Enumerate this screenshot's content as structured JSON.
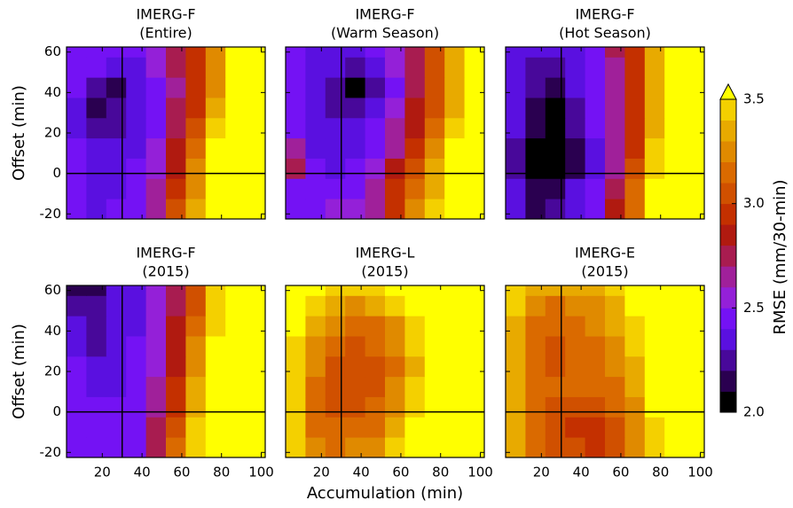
{
  "xlabel": "Accumulation (min)",
  "colorbar": {
    "label": "RMSE (mm/30-min)",
    "lim": [
      2.0,
      3.5
    ],
    "ticks": [
      {
        "value": 2,
        "label": "2.0"
      },
      2.5,
      {
        "value": 3,
        "label": "3.0"
      },
      3.5
    ],
    "colors": [
      "#000000",
      "#2a0050",
      "#48089a",
      "#5a10e0",
      "#7412f4",
      "#9420d8",
      "#a0209a",
      "#a81c50",
      "#b01a10",
      "#c43000",
      "#d05000",
      "#da6a00",
      "#e08a00",
      "#e8aa00",
      "#f4d000"
    ],
    "over": "#ffff00"
  },
  "chart_data": [
    {
      "type": "heatmap",
      "title": "IMERG-F",
      "subtitle": "(Entire)",
      "ylabel": "Offset (min)",
      "xlim": [
        2,
        102
      ],
      "ylim": [
        -22.5,
        62.5
      ],
      "xticks": [
        20,
        40,
        60,
        80,
        100
      ],
      "yticks": [
        -20,
        0,
        20,
        40,
        60
      ],
      "xticklabels": false,
      "yticklabels": true,
      "vline": 30,
      "hline": 0,
      "xbins": [
        2,
        12,
        22,
        32,
        42,
        52,
        62,
        72,
        82,
        92,
        102
      ],
      "ybins": [
        -22.5,
        -12.5,
        -2.5,
        7.5,
        17.5,
        27.5,
        37.5,
        47.5,
        57.5,
        62.5
      ],
      "values": [
        [
          2.4,
          2.35,
          2.4,
          2.45,
          2.6,
          3.0,
          3.3,
          3.6,
          3.6,
          3.6
        ],
        [
          2.4,
          2.35,
          2.35,
          2.4,
          2.6,
          2.9,
          3.2,
          3.6,
          3.6,
          3.6
        ],
        [
          2.4,
          2.35,
          2.3,
          2.4,
          2.55,
          2.85,
          3.2,
          3.6,
          3.6,
          3.6
        ],
        [
          2.4,
          2.3,
          2.3,
          2.35,
          2.5,
          2.8,
          3.1,
          3.5,
          3.6,
          3.6
        ],
        [
          2.35,
          2.25,
          2.25,
          2.3,
          2.45,
          2.75,
          3.05,
          3.45,
          3.6,
          3.6
        ],
        [
          2.35,
          2.15,
          2.2,
          2.3,
          2.45,
          2.7,
          2.95,
          3.3,
          3.6,
          3.6
        ],
        [
          2.4,
          2.25,
          2.15,
          2.3,
          2.45,
          2.65,
          2.9,
          3.2,
          3.6,
          3.6
        ],
        [
          2.45,
          2.4,
          2.35,
          2.35,
          2.5,
          2.7,
          2.95,
          3.2,
          3.6,
          3.6
        ],
        [
          2.4,
          2.45,
          2.4,
          2.4,
          2.5,
          2.7,
          2.95,
          3.25,
          3.6,
          3.6
        ]
      ]
    },
    {
      "type": "heatmap",
      "title": "IMERG-F",
      "subtitle": "(Warm Season)",
      "xlim": [
        2,
        102
      ],
      "ylim": [
        -22.5,
        62.5
      ],
      "xticks": [
        20,
        40,
        60,
        80,
        100
      ],
      "yticks": [
        -20,
        0,
        20,
        40,
        60
      ],
      "xticklabels": false,
      "yticklabels": false,
      "vline": 30,
      "hline": 0,
      "xbins": [
        2,
        12,
        22,
        32,
        42,
        52,
        62,
        72,
        82,
        92,
        102
      ],
      "ybins": [
        -22.5,
        -12.5,
        -2.5,
        7.5,
        17.5,
        27.5,
        37.5,
        47.5,
        57.5,
        62.5
      ],
      "values": [
        [
          2.45,
          2.45,
          2.5,
          2.5,
          2.6,
          2.9,
          3.2,
          3.4,
          3.6,
          3.6
        ],
        [
          2.45,
          2.4,
          2.45,
          2.45,
          2.6,
          2.9,
          3.1,
          3.3,
          3.6,
          3.6
        ],
        [
          2.7,
          2.4,
          2.35,
          2.4,
          2.5,
          2.8,
          3.0,
          3.3,
          3.6,
          3.6
        ],
        [
          2.6,
          2.35,
          2.3,
          2.35,
          2.45,
          2.65,
          2.9,
          3.2,
          3.5,
          3.6
        ],
        [
          2.45,
          2.35,
          2.3,
          2.35,
          2.4,
          2.6,
          2.85,
          3.15,
          3.4,
          3.6
        ],
        [
          2.4,
          2.3,
          2.25,
          2.25,
          2.35,
          2.55,
          2.8,
          3.05,
          3.35,
          3.6
        ],
        [
          2.45,
          2.3,
          2.2,
          2.05,
          2.2,
          2.45,
          2.75,
          3.0,
          3.3,
          3.6
        ],
        [
          2.4,
          2.35,
          2.3,
          2.25,
          2.3,
          2.5,
          2.7,
          3.0,
          3.3,
          3.6
        ],
        [
          2.4,
          2.3,
          2.35,
          2.35,
          2.4,
          2.5,
          2.75,
          3.0,
          3.3,
          3.6
        ]
      ]
    },
    {
      "type": "heatmap",
      "title": "IMERG-F",
      "subtitle": "(Hot Season)",
      "xlim": [
        2,
        102
      ],
      "ylim": [
        -22.5,
        62.5
      ],
      "xticks": [
        20,
        40,
        60,
        80,
        100
      ],
      "yticks": [
        -20,
        0,
        20,
        40,
        60
      ],
      "xticklabels": false,
      "yticklabels": false,
      "vline": 30,
      "hline": 0,
      "xbins": [
        2,
        12,
        22,
        32,
        42,
        52,
        62,
        72,
        82,
        92,
        102
      ],
      "ybins": [
        -22.5,
        -12.5,
        -2.5,
        7.5,
        17.5,
        27.5,
        37.5,
        47.5,
        57.5,
        62.5
      ],
      "values": [
        [
          2.3,
          2.15,
          2.2,
          2.3,
          2.45,
          2.8,
          3.1,
          3.6,
          3.6,
          3.6
        ],
        [
          2.3,
          2.15,
          2.15,
          2.3,
          2.45,
          2.75,
          3.1,
          3.5,
          3.6,
          3.6
        ],
        [
          2.25,
          2.05,
          2.05,
          2.15,
          2.35,
          2.65,
          3.0,
          3.4,
          3.6,
          3.6
        ],
        [
          2.25,
          2.05,
          2.05,
          2.15,
          2.35,
          2.6,
          2.95,
          3.4,
          3.6,
          3.6
        ],
        [
          2.3,
          2.1,
          2.05,
          2.2,
          2.4,
          2.6,
          2.95,
          3.35,
          3.6,
          3.6
        ],
        [
          2.3,
          2.15,
          2.05,
          2.25,
          2.4,
          2.6,
          2.95,
          3.3,
          3.6,
          3.6
        ],
        [
          2.3,
          2.2,
          2.1,
          2.3,
          2.45,
          2.65,
          2.95,
          3.3,
          3.6,
          3.6
        ],
        [
          2.3,
          2.25,
          2.25,
          2.3,
          2.45,
          2.65,
          2.95,
          3.3,
          3.6,
          3.6
        ],
        [
          2.3,
          2.3,
          2.3,
          2.35,
          2.45,
          2.7,
          2.95,
          3.3,
          3.6,
          3.6
        ]
      ]
    },
    {
      "type": "heatmap",
      "title": "IMERG-F",
      "subtitle": "(2015)",
      "ylabel": "Offset (min)",
      "xlim": [
        2,
        102
      ],
      "ylim": [
        -22.5,
        62.5
      ],
      "xticks": [
        20,
        40,
        60,
        80,
        100
      ],
      "yticks": [
        -20,
        0,
        20,
        40,
        60
      ],
      "xticklabels": true,
      "yticklabels": true,
      "vline": 30,
      "hline": 0,
      "xbins": [
        2,
        12,
        22,
        32,
        42,
        52,
        62,
        72,
        82,
        92,
        102
      ],
      "ybins": [
        -22.5,
        -12.5,
        -2.5,
        7.5,
        17.5,
        27.5,
        37.5,
        47.5,
        57.5,
        62.5
      ],
      "values": [
        [
          2.45,
          2.4,
          2.4,
          2.45,
          2.7,
          3.1,
          3.4,
          3.6,
          3.6,
          3.6
        ],
        [
          2.45,
          2.4,
          2.4,
          2.45,
          2.7,
          3.0,
          3.4,
          3.6,
          3.6,
          3.6
        ],
        [
          2.4,
          2.4,
          2.4,
          2.45,
          2.65,
          2.95,
          3.35,
          3.6,
          3.6,
          3.6
        ],
        [
          2.4,
          2.35,
          2.35,
          2.4,
          2.6,
          2.9,
          3.3,
          3.6,
          3.6,
          3.6
        ],
        [
          2.4,
          2.35,
          2.35,
          2.4,
          2.55,
          2.85,
          3.2,
          3.6,
          3.6,
          3.6
        ],
        [
          2.35,
          2.25,
          2.3,
          2.4,
          2.5,
          2.8,
          3.2,
          3.5,
          3.6,
          3.6
        ],
        [
          2.35,
          2.2,
          2.3,
          2.35,
          2.5,
          2.8,
          3.1,
          3.45,
          3.6,
          3.6
        ],
        [
          2.25,
          2.25,
          2.3,
          2.35,
          2.5,
          2.75,
          3.05,
          3.4,
          3.6,
          3.6
        ],
        [
          2.15,
          2.1,
          2.3,
          2.35,
          2.5,
          2.75,
          3.05,
          3.4,
          3.6,
          3.6
        ]
      ]
    },
    {
      "type": "heatmap",
      "title": "IMERG-L",
      "subtitle": "(2015)",
      "xlim": [
        2,
        102
      ],
      "ylim": [
        -22.5,
        62.5
      ],
      "xticks": [
        20,
        40,
        60,
        80,
        100
      ],
      "yticks": [
        -20,
        0,
        20,
        40,
        60
      ],
      "xticklabels": true,
      "yticklabels": false,
      "vline": 30,
      "hline": 0,
      "xbins": [
        2,
        12,
        22,
        32,
        42,
        52,
        62,
        72,
        82,
        92,
        102
      ],
      "ybins": [
        -22.5,
        -12.5,
        -2.5,
        7.5,
        17.5,
        27.5,
        37.5,
        47.5,
        57.5,
        62.5
      ],
      "values": [
        [
          3.45,
          3.2,
          3.15,
          3.2,
          3.25,
          3.4,
          3.6,
          3.6,
          3.6,
          3.6
        ],
        [
          3.4,
          3.15,
          3.1,
          3.1,
          3.15,
          3.3,
          3.5,
          3.6,
          3.6,
          3.6
        ],
        [
          3.4,
          3.15,
          3.05,
          3.05,
          3.1,
          3.25,
          3.45,
          3.6,
          3.6,
          3.6
        ],
        [
          3.4,
          3.15,
          3.05,
          3.0,
          3.05,
          3.2,
          3.4,
          3.6,
          3.6,
          3.6
        ],
        [
          3.4,
          3.2,
          3.05,
          3.0,
          3.0,
          3.15,
          3.35,
          3.55,
          3.6,
          3.6
        ],
        [
          3.45,
          3.25,
          3.1,
          3.05,
          3.1,
          3.2,
          3.4,
          3.6,
          3.6,
          3.6
        ],
        [
          3.5,
          3.3,
          3.2,
          3.15,
          3.15,
          3.25,
          3.45,
          3.6,
          3.6,
          3.6
        ],
        [
          3.55,
          3.4,
          3.3,
          3.25,
          3.3,
          3.4,
          3.55,
          3.6,
          3.6,
          3.6
        ],
        [
          3.6,
          3.5,
          3.45,
          3.4,
          3.45,
          3.5,
          3.6,
          3.6,
          3.6,
          3.6
        ]
      ]
    },
    {
      "type": "heatmap",
      "title": "IMERG-E",
      "subtitle": "(2015)",
      "xlim": [
        2,
        102
      ],
      "ylim": [
        -22.5,
        62.5
      ],
      "xticks": [
        20,
        40,
        60,
        80,
        100
      ],
      "yticks": [
        -20,
        0,
        20,
        40,
        60
      ],
      "xticklabels": true,
      "yticklabels": false,
      "vline": 30,
      "hline": 0,
      "xbins": [
        2,
        12,
        22,
        32,
        42,
        52,
        62,
        72,
        82,
        92,
        102
      ],
      "ybins": [
        -22.5,
        -12.5,
        -2.5,
        7.5,
        17.5,
        27.5,
        37.5,
        47.5,
        57.5,
        62.5
      ],
      "values": [
        [
          3.3,
          3.1,
          3.05,
          3.0,
          2.95,
          3.0,
          3.2,
          3.45,
          3.6,
          3.6
        ],
        [
          3.3,
          3.1,
          3.05,
          2.95,
          2.95,
          3.0,
          3.2,
          3.45,
          3.6,
          3.6
        ],
        [
          3.35,
          3.1,
          3.05,
          3.05,
          3.05,
          3.1,
          3.25,
          3.5,
          3.6,
          3.6
        ],
        [
          3.35,
          3.1,
          3.1,
          3.1,
          3.1,
          3.15,
          3.3,
          3.5,
          3.6,
          3.6
        ],
        [
          3.3,
          3.1,
          3.05,
          3.1,
          3.1,
          3.2,
          3.35,
          3.55,
          3.6,
          3.6
        ],
        [
          3.3,
          3.1,
          3.05,
          3.1,
          3.15,
          3.25,
          3.4,
          3.6,
          3.6,
          3.6
        ],
        [
          3.35,
          3.15,
          3.1,
          3.15,
          3.2,
          3.3,
          3.45,
          3.6,
          3.6,
          3.6
        ],
        [
          3.4,
          3.2,
          3.15,
          3.2,
          3.25,
          3.35,
          3.5,
          3.6,
          3.6,
          3.6
        ],
        [
          3.45,
          3.3,
          3.3,
          3.3,
          3.35,
          3.45,
          3.6,
          3.6,
          3.6,
          3.6
        ]
      ]
    }
  ]
}
